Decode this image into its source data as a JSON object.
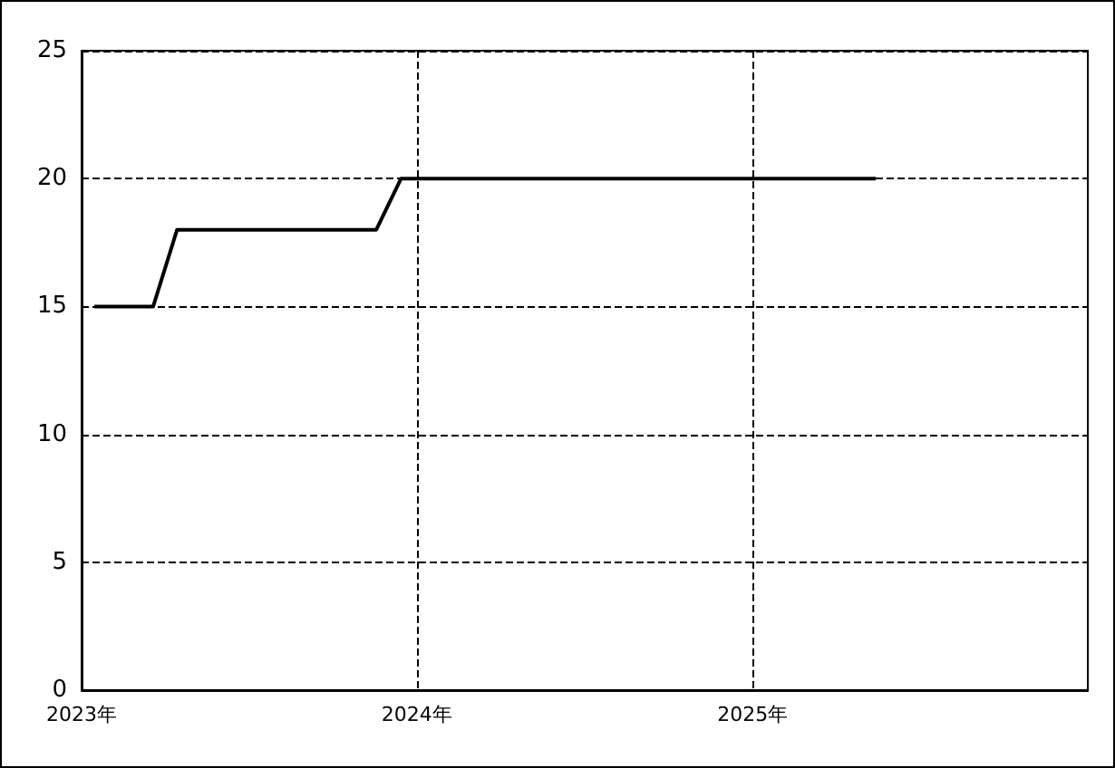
{
  "chart_data": {
    "type": "line",
    "x": [
      "2023-01-15",
      "2023-03-20",
      "2023-04-15",
      "2023-11-18",
      "2023-12-15",
      "2025-05-15"
    ],
    "series": [
      {
        "color": "#000000",
        "values": [
          15,
          15,
          18,
          18,
          20,
          20
        ]
      }
    ],
    "xlim": [
      "2023-01-01",
      "2026-01-01"
    ],
    "xticks": [
      {
        "value": "2023-01-01",
        "label": "2023年"
      },
      {
        "value": "2024-01-01",
        "label": "2024年"
      },
      {
        "value": "2025-01-01",
        "label": "2025年"
      }
    ],
    "ylim": [
      0,
      25
    ],
    "yticks": [
      0,
      5,
      10,
      15,
      20,
      25
    ],
    "grid": true,
    "marker": "none",
    "line_style": "solid"
  }
}
